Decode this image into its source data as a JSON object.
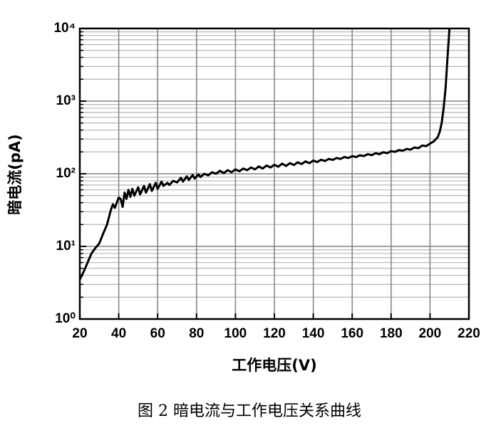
{
  "chart_data": {
    "type": "line",
    "caption": "图 2 暗电流与工作电压关系曲线",
    "x_label": "工作电压(V)",
    "y_label": "暗电流(pA)",
    "color": "#000000",
    "log_y": true,
    "grid": true,
    "minor_grid": true,
    "xlim": [
      20,
      220
    ],
    "xticks": [
      20,
      40,
      60,
      80,
      100,
      120,
      140,
      160,
      180,
      200,
      220
    ],
    "ylim": [
      1,
      10000
    ],
    "yticks": [
      {
        "value": 1,
        "label": "10⁰"
      },
      {
        "value": 10,
        "label": "10¹"
      },
      {
        "value": 100,
        "label": "10²"
      },
      {
        "value": 1000,
        "label": "10³"
      },
      {
        "value": 10000,
        "label": "10⁴"
      }
    ],
    "x": [
      20,
      22,
      24,
      26,
      28,
      30,
      32,
      34,
      36,
      37,
      38,
      39,
      40,
      41,
      42,
      43,
      44,
      45,
      46,
      47,
      48,
      50,
      51,
      53,
      54,
      56,
      57,
      59,
      60,
      62,
      63,
      65,
      66,
      68,
      70,
      72,
      73,
      75,
      76,
      78,
      79,
      81,
      82,
      84,
      86,
      88,
      90,
      92,
      94,
      96,
      98,
      100,
      102,
      104,
      106,
      108,
      110,
      112,
      114,
      116,
      118,
      120,
      122,
      124,
      126,
      128,
      130,
      132,
      134,
      136,
      138,
      140,
      142,
      144,
      146,
      148,
      150,
      152,
      154,
      156,
      158,
      160,
      162,
      164,
      166,
      168,
      170,
      172,
      174,
      176,
      178,
      180,
      182,
      184,
      186,
      188,
      190,
      192,
      194,
      196,
      198,
      200,
      202,
      204,
      205,
      206,
      207,
      208,
      209,
      210
    ],
    "values": [
      3.5,
      4.5,
      6,
      8,
      9.5,
      11,
      15,
      20,
      32,
      38,
      34,
      40,
      47,
      45,
      35,
      55,
      45,
      60,
      48,
      62,
      50,
      65,
      52,
      68,
      55,
      72,
      58,
      75,
      62,
      78,
      68,
      75,
      70,
      80,
      76,
      88,
      78,
      92,
      82,
      96,
      86,
      98,
      90,
      100,
      95,
      105,
      100,
      110,
      102,
      112,
      105,
      115,
      108,
      118,
      112,
      122,
      115,
      126,
      118,
      130,
      122,
      133,
      125,
      138,
      128,
      140,
      132,
      144,
      136,
      148,
      140,
      152,
      145,
      156,
      150,
      160,
      155,
      165,
      160,
      170,
      165,
      175,
      170,
      180,
      175,
      186,
      180,
      192,
      186,
      198,
      192,
      205,
      200,
      212,
      208,
      220,
      215,
      230,
      225,
      245,
      240,
      260,
      280,
      320,
      380,
      500,
      800,
      1500,
      4000,
      10000
    ]
  }
}
